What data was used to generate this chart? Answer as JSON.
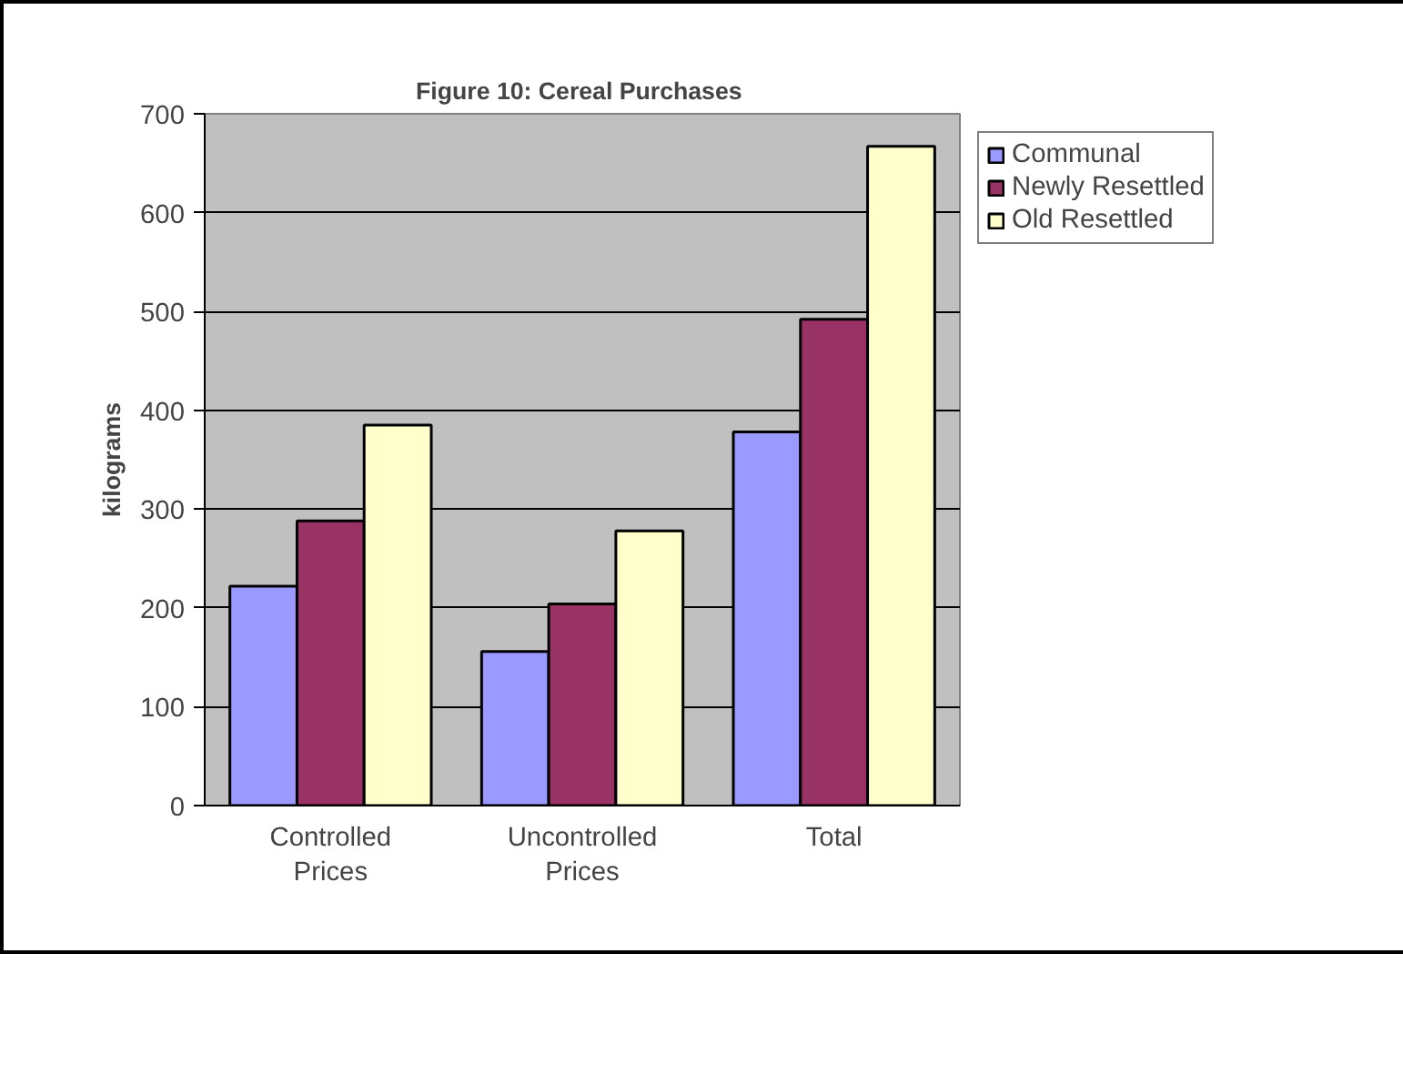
{
  "chart_data": {
    "type": "bar",
    "title": "Figure 10:  Cereal Purchases",
    "ylabel": "kilograms",
    "categories": [
      "Controlled\nPrices",
      "Uncontrolled\nPrices",
      "Total"
    ],
    "series": [
      {
        "name": "Communal",
        "color": "#9999ff",
        "values": [
          222,
          156,
          378
        ]
      },
      {
        "name": "Newly Resettled",
        "color": "#993366",
        "values": [
          288,
          204,
          492
        ]
      },
      {
        "name": "Old Resettled",
        "color": "#ffffcc",
        "values": [
          385,
          278,
          667
        ]
      }
    ],
    "ylim": [
      0,
      700
    ],
    "yticks": [
      0,
      100,
      200,
      300,
      400,
      500,
      600,
      700
    ],
    "grid": "y",
    "legend": "right"
  }
}
